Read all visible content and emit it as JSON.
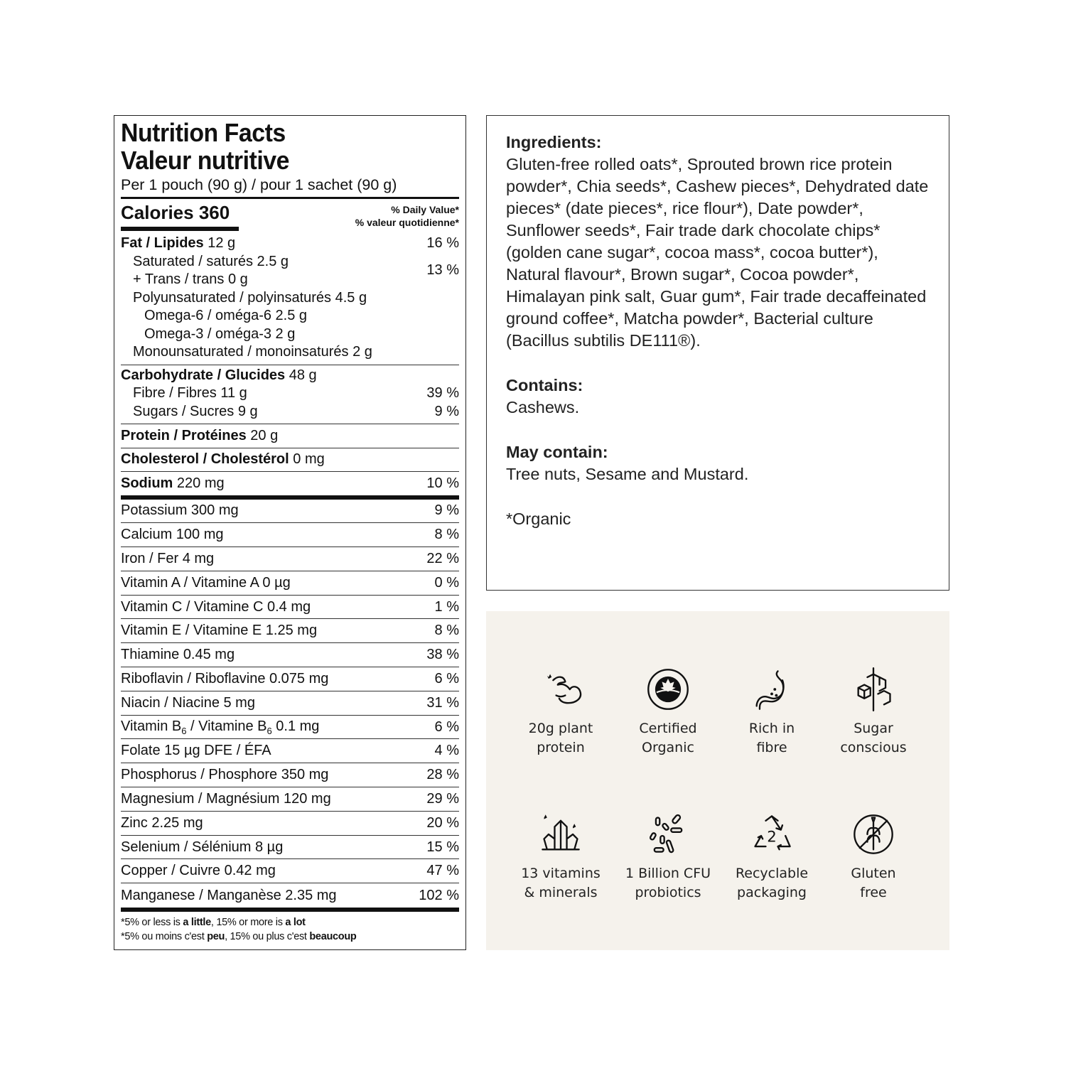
{
  "nutrition": {
    "title_en": "Nutrition Facts",
    "title_fr": "Valeur nutritive",
    "serving": "Per 1 pouch (90 g) / pour 1 sachet (90 g)",
    "calories": "Calories 360",
    "dv_en": "% Daily Value*",
    "dv_fr": "% valeur quotidienne*",
    "fat": {
      "label": "Fat / Lipides",
      "amount": "12 g",
      "dv": "16 %"
    },
    "saturated": "Saturated / saturés 2.5 g",
    "trans": "+ Trans / trans 0 g",
    "sat_trans_dv": "13 %",
    "poly": "Polyunsaturated / polyinsaturés 4.5 g",
    "omega6": "Omega-6 / oméga-6 2.5 g",
    "omega3": "Omega-3 / oméga-3 2 g",
    "mono": "Monounsaturated / monoinsaturés 2 g",
    "carb": {
      "label": "Carbohydrate / Glucides",
      "amount": "48 g"
    },
    "fibre": {
      "label": "Fibre / Fibres 11 g",
      "dv": "39 %"
    },
    "sugars": {
      "label": "Sugars / Sucres 9 g",
      "dv": "9 %"
    },
    "protein": {
      "label": "Protein / Protéines",
      "amount": "20 g"
    },
    "cholesterol": {
      "label": "Cholesterol / Cholestérol",
      "amount": "0 mg"
    },
    "sodium": {
      "label": "Sodium",
      "amount": "220 mg",
      "dv": "10 %"
    },
    "vitamins": [
      {
        "label": "Potassium 300 mg",
        "dv": "9 %"
      },
      {
        "label": "Calcium 100 mg",
        "dv": "8 %"
      },
      {
        "label": "Iron / Fer 4 mg",
        "dv": "22 %"
      },
      {
        "label": "Vitamin A / Vitamine A 0 µg",
        "dv": "0 %"
      },
      {
        "label": "Vitamin C / Vitamine C 0.4 mg",
        "dv": "1 %"
      },
      {
        "label": "Vitamin E / Vitamine E 1.25 mg",
        "dv": "8 %"
      },
      {
        "label": "Thiamine 0.45 mg",
        "dv": "38 %"
      },
      {
        "label": "Riboflavin / Riboflavine 0.075 mg",
        "dv": "6 %"
      },
      {
        "label": "Niacin / Niacine 5 mg",
        "dv": "31 %"
      },
      {
        "label": "Vitamin B6 / Vitamine B6 0.1 mg",
        "dv": "6 %"
      },
      {
        "label": "Folate 15 µg DFE / ÉFA",
        "dv": "4 %"
      },
      {
        "label": "Phosphorus / Phosphore 350 mg",
        "dv": "28 %"
      },
      {
        "label": "Magnesium / Magnésium 120 mg",
        "dv": "29 %"
      },
      {
        "label": "Zinc 2.25 mg",
        "dv": "20 %"
      },
      {
        "label": "Selenium / Sélénium 8 µg",
        "dv": "15 %"
      },
      {
        "label": "Copper / Cuivre 0.42 mg",
        "dv": "47 %"
      },
      {
        "label": "Manganese / Manganèse 2.35 mg",
        "dv": "102 %"
      }
    ],
    "footnote_en": {
      "a": "*5% or less is ",
      "b": "a little",
      ",c": "",
      "c": ", 15% or more is ",
      "d": "a lot"
    },
    "footnote_fr": {
      "a": "*5% ou moins c'est ",
      "b": "peu",
      "c": ", 15% ou plus c'est ",
      "d": "beaucoup"
    }
  },
  "ingredients": {
    "heading": "Ingredients:",
    "text": "Gluten-free rolled oats*, Sprouted brown rice protein powder*, Chia seeds*, Cashew pieces*, Dehydrated date pieces* (date pieces*, rice flour*), Date powder*, Sunflower seeds*, Fair trade dark chocolate chips* (golden cane sugar*, cocoa mass*, cocoa butter*), Natural flavour*, Brown sugar*, Cocoa powder*, Himalayan pink salt, Guar gum*, Fair trade decaffeinated ground coffee*, Matcha powder*, Bacterial culture (Bacillus subtilis DE111®).",
    "contains_heading": "Contains:",
    "contains": "Cashews.",
    "may_contain_heading": "May contain:",
    "may_contain": "Tree nuts, Sesame and Mustard.",
    "organic_note": "*Organic"
  },
  "claims": {
    "background": "#f5f2ec",
    "items": [
      {
        "icon": "flexed-arm-icon",
        "l1": "20g plant",
        "l2": "protein"
      },
      {
        "icon": "canada-organic-seal-icon",
        "l1": "Certified",
        "l2": "Organic",
        "seal_text": "CANADA ORGANIC • BIOLOGIQUE CANADA"
      },
      {
        "icon": "stomach-icon",
        "l1": "Rich in",
        "l2": "fibre"
      },
      {
        "icon": "sugar-cubes-icon",
        "l1": "Sugar",
        "l2": "conscious"
      },
      {
        "icon": "crystals-icon",
        "l1": "13 vitamins",
        "l2": "& minerals"
      },
      {
        "icon": "bacteria-icon",
        "l1": "1 Billion CFU",
        "l2": "probiotics"
      },
      {
        "icon": "recycle-2-icon",
        "l1": "Recyclable",
        "l2": "packaging"
      },
      {
        "icon": "gluten-free-icon",
        "l1": "Gluten",
        "l2": "free"
      }
    ]
  }
}
